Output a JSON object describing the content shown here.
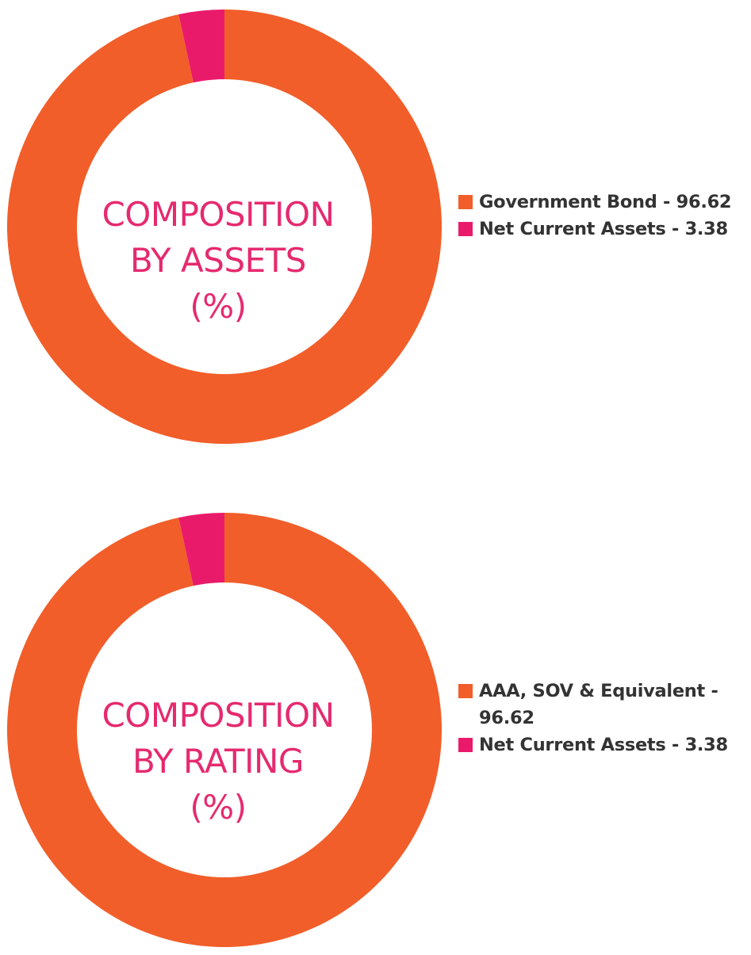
{
  "colors": {
    "orange": "#f15e2a",
    "pink": "#ea1a6b",
    "title": "#e52a6f",
    "legend_text": "#333333"
  },
  "chart_data": [
    {
      "type": "pie",
      "style": "donut",
      "center_title": [
        "COMPOSITION",
        "BY ASSETS",
        "(%)"
      ],
      "slices": [
        {
          "label": "Government Bond - 96.62",
          "name": "Government Bond",
          "value": 96.62,
          "color": "#f15e2a"
        },
        {
          "label": "Net Current Assets - 3.38",
          "name": "Net Current Assets",
          "value": 3.38,
          "color": "#ea1a6b"
        }
      ],
      "legend_position": "right"
    },
    {
      "type": "pie",
      "style": "donut",
      "center_title": [
        "COMPOSITION",
        "BY RATING",
        "(%)"
      ],
      "slices": [
        {
          "label": "AAA, SOV & Equivalent - 96.62",
          "label_lines": [
            "AAA, SOV & Equivalent -",
            "96.62"
          ],
          "name": "AAA, SOV & Equivalent",
          "value": 96.62,
          "color": "#f15e2a"
        },
        {
          "label": "Net Current Assets - 3.38",
          "name": "Net Current Assets",
          "value": 3.38,
          "color": "#ea1a6b"
        }
      ],
      "legend_position": "right"
    }
  ]
}
